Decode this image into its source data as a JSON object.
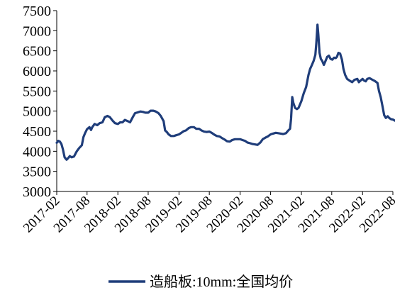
{
  "chart_data": {
    "type": "line",
    "title": "",
    "xlabel": "",
    "ylabel": "",
    "ylim": [
      3000,
      7500
    ],
    "yticks": [
      3000,
      3500,
      4000,
      4500,
      5000,
      5500,
      6000,
      6500,
      7000,
      7500
    ],
    "xlim": [
      "2017-02",
      "2022-08"
    ],
    "xticks": [
      "2017-02",
      "2017-08",
      "2018-02",
      "2018-08",
      "2019-02",
      "2019-08",
      "2020-02",
      "2020-08",
      "2021-02",
      "2021-08",
      "2022-02",
      "2022-08"
    ],
    "grid": false,
    "legend": "bottom-center",
    "series": [
      {
        "name": "造船板:10mm:全国均价",
        "color": "#1f3d7a",
        "points": [
          [
            "2017-02-01",
            4210
          ],
          [
            "2017-02-10",
            4260
          ],
          [
            "2017-02-20",
            4240
          ],
          [
            "2017-03-01",
            4180
          ],
          [
            "2017-03-10",
            4050
          ],
          [
            "2017-03-20",
            3850
          ],
          [
            "2017-04-01",
            3790
          ],
          [
            "2017-04-10",
            3830
          ],
          [
            "2017-04-20",
            3880
          ],
          [
            "2017-05-01",
            3850
          ],
          [
            "2017-05-15",
            3870
          ],
          [
            "2017-06-01",
            4000
          ],
          [
            "2017-06-15",
            4080
          ],
          [
            "2017-07-01",
            4150
          ],
          [
            "2017-07-10",
            4350
          ],
          [
            "2017-07-20",
            4450
          ],
          [
            "2017-08-01",
            4550
          ],
          [
            "2017-08-15",
            4600
          ],
          [
            "2017-08-25",
            4530
          ],
          [
            "2017-09-01",
            4600
          ],
          [
            "2017-09-15",
            4680
          ],
          [
            "2017-10-01",
            4650
          ],
          [
            "2017-10-15",
            4700
          ],
          [
            "2017-11-01",
            4720
          ],
          [
            "2017-11-15",
            4850
          ],
          [
            "2017-12-01",
            4880
          ],
          [
            "2017-12-15",
            4850
          ],
          [
            "2018-01-01",
            4760
          ],
          [
            "2018-01-15",
            4700
          ],
          [
            "2018-02-01",
            4680
          ],
          [
            "2018-02-15",
            4720
          ],
          [
            "2018-03-01",
            4720
          ],
          [
            "2018-03-15",
            4780
          ],
          [
            "2018-04-01",
            4750
          ],
          [
            "2018-04-15",
            4720
          ],
          [
            "2018-05-01",
            4850
          ],
          [
            "2018-05-15",
            4950
          ],
          [
            "2018-06-01",
            4970
          ],
          [
            "2018-06-15",
            4990
          ],
          [
            "2018-07-01",
            4980
          ],
          [
            "2018-07-15",
            4960
          ],
          [
            "2018-08-01",
            4960
          ],
          [
            "2018-08-15",
            5010
          ],
          [
            "2018-09-01",
            5010
          ],
          [
            "2018-09-15",
            4990
          ],
          [
            "2018-10-01",
            4950
          ],
          [
            "2018-10-15",
            4880
          ],
          [
            "2018-11-01",
            4750
          ],
          [
            "2018-11-10",
            4520
          ],
          [
            "2018-11-20",
            4480
          ],
          [
            "2018-12-01",
            4420
          ],
          [
            "2018-12-15",
            4380
          ],
          [
            "2019-01-01",
            4380
          ],
          [
            "2019-01-15",
            4400
          ],
          [
            "2019-02-01",
            4420
          ],
          [
            "2019-02-15",
            4460
          ],
          [
            "2019-03-01",
            4500
          ],
          [
            "2019-03-15",
            4520
          ],
          [
            "2019-04-01",
            4580
          ],
          [
            "2019-04-15",
            4600
          ],
          [
            "2019-05-01",
            4600
          ],
          [
            "2019-05-15",
            4560
          ],
          [
            "2019-06-01",
            4560
          ],
          [
            "2019-06-15",
            4520
          ],
          [
            "2019-07-01",
            4490
          ],
          [
            "2019-07-15",
            4480
          ],
          [
            "2019-08-01",
            4490
          ],
          [
            "2019-08-15",
            4460
          ],
          [
            "2019-09-01",
            4410
          ],
          [
            "2019-09-15",
            4380
          ],
          [
            "2019-10-01",
            4370
          ],
          [
            "2019-10-15",
            4330
          ],
          [
            "2019-11-01",
            4290
          ],
          [
            "2019-11-15",
            4250
          ],
          [
            "2019-12-01",
            4240
          ],
          [
            "2019-12-15",
            4280
          ],
          [
            "2020-01-01",
            4300
          ],
          [
            "2020-01-15",
            4300
          ],
          [
            "2020-02-01",
            4300
          ],
          [
            "2020-02-15",
            4280
          ],
          [
            "2020-03-01",
            4260
          ],
          [
            "2020-03-15",
            4220
          ],
          [
            "2020-04-01",
            4200
          ],
          [
            "2020-04-15",
            4180
          ],
          [
            "2020-05-01",
            4170
          ],
          [
            "2020-05-15",
            4160
          ],
          [
            "2020-06-01",
            4220
          ],
          [
            "2020-06-15",
            4300
          ],
          [
            "2020-07-01",
            4340
          ],
          [
            "2020-07-15",
            4370
          ],
          [
            "2020-08-01",
            4420
          ],
          [
            "2020-08-15",
            4440
          ],
          [
            "2020-09-01",
            4460
          ],
          [
            "2020-09-15",
            4450
          ],
          [
            "2020-10-01",
            4440
          ],
          [
            "2020-10-15",
            4430
          ],
          [
            "2020-11-01",
            4450
          ],
          [
            "2020-11-15",
            4520
          ],
          [
            "2020-11-25",
            4560
          ],
          [
            "2020-12-01",
            4800
          ],
          [
            "2020-12-08",
            5350
          ],
          [
            "2020-12-15",
            5200
          ],
          [
            "2020-12-25",
            5080
          ],
          [
            "2021-01-05",
            5050
          ],
          [
            "2021-01-15",
            5080
          ],
          [
            "2021-02-01",
            5250
          ],
          [
            "2021-02-15",
            5450
          ],
          [
            "2021-03-01",
            5600
          ],
          [
            "2021-03-15",
            5900
          ],
          [
            "2021-03-25",
            6050
          ],
          [
            "2021-04-05",
            6150
          ],
          [
            "2021-04-15",
            6250
          ],
          [
            "2021-04-25",
            6400
          ],
          [
            "2021-05-01",
            6700
          ],
          [
            "2021-05-08",
            7150
          ],
          [
            "2021-05-13",
            6900
          ],
          [
            "2021-05-20",
            6450
          ],
          [
            "2021-05-28",
            6300
          ],
          [
            "2021-06-05",
            6250
          ],
          [
            "2021-06-15",
            6150
          ],
          [
            "2021-06-25",
            6250
          ],
          [
            "2021-07-05",
            6350
          ],
          [
            "2021-07-15",
            6380
          ],
          [
            "2021-07-25",
            6300
          ],
          [
            "2021-08-05",
            6280
          ],
          [
            "2021-08-15",
            6330
          ],
          [
            "2021-08-25",
            6320
          ],
          [
            "2021-09-01",
            6350
          ],
          [
            "2021-09-10",
            6450
          ],
          [
            "2021-09-20",
            6430
          ],
          [
            "2021-10-01",
            6280
          ],
          [
            "2021-10-10",
            6050
          ],
          [
            "2021-10-20",
            5900
          ],
          [
            "2021-11-01",
            5800
          ],
          [
            "2021-11-15",
            5760
          ],
          [
            "2021-12-01",
            5720
          ],
          [
            "2021-12-15",
            5780
          ],
          [
            "2022-01-01",
            5800
          ],
          [
            "2022-01-10",
            5720
          ],
          [
            "2022-01-20",
            5760
          ],
          [
            "2022-02-01",
            5800
          ],
          [
            "2022-02-10",
            5760
          ],
          [
            "2022-02-20",
            5740
          ],
          [
            "2022-03-01",
            5800
          ],
          [
            "2022-03-15",
            5820
          ],
          [
            "2022-04-01",
            5780
          ],
          [
            "2022-04-15",
            5750
          ],
          [
            "2022-05-01",
            5700
          ],
          [
            "2022-05-10",
            5500
          ],
          [
            "2022-05-20",
            5350
          ],
          [
            "2022-06-01",
            5100
          ],
          [
            "2022-06-10",
            4900
          ],
          [
            "2022-06-20",
            4830
          ],
          [
            "2022-07-01",
            4870
          ],
          [
            "2022-07-10",
            4830
          ],
          [
            "2022-07-20",
            4800
          ],
          [
            "2022-08-01",
            4790
          ],
          [
            "2022-08-15",
            4760
          ]
        ]
      }
    ]
  }
}
